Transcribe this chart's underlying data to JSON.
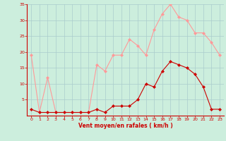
{
  "x": [
    0,
    1,
    2,
    3,
    4,
    5,
    6,
    7,
    8,
    9,
    10,
    11,
    12,
    13,
    14,
    15,
    16,
    17,
    18,
    19,
    20,
    21,
    22,
    23
  ],
  "wind_mean": [
    2,
    1,
    1,
    1,
    1,
    1,
    1,
    1,
    2,
    1,
    3,
    3,
    3,
    5,
    10,
    9,
    14,
    17,
    16,
    15,
    13,
    9,
    2,
    2
  ],
  "wind_gust": [
    19,
    1,
    12,
    1,
    1,
    1,
    1,
    1,
    16,
    14,
    19,
    19,
    24,
    22,
    19,
    27,
    32,
    35,
    31,
    30,
    26,
    26,
    23,
    19
  ],
  "mean_color": "#cc0000",
  "gust_color": "#ff9999",
  "bg_color": "#cceedd",
  "grid_color": "#aacccc",
  "xlabel": "Vent moyen/en rafales ( km/h )",
  "xlabel_color": "#cc0000",
  "tick_color": "#cc0000",
  "spine_color": "#cc0000",
  "ylim": [
    0,
    35
  ],
  "yticks": [
    5,
    10,
    15,
    20,
    25,
    30,
    35
  ],
  "xlim": [
    -0.5,
    23.5
  ],
  "xticks": [
    0,
    1,
    2,
    3,
    4,
    5,
    6,
    7,
    8,
    9,
    10,
    11,
    12,
    13,
    14,
    15,
    16,
    17,
    18,
    19,
    20,
    21,
    22,
    23
  ]
}
